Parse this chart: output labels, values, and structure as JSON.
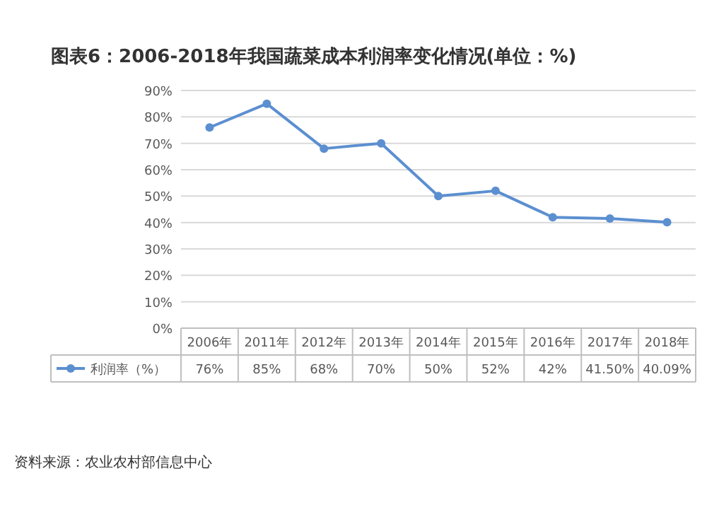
{
  "chart_data": {
    "type": "line",
    "title": "图表6：2006-2018年我国蔬菜成本利润率变化情况(单位：%)",
    "categories": [
      "2006年",
      "2011年",
      "2012年",
      "2013年",
      "2014年",
      "2015年",
      "2016年",
      "2017年",
      "2018年"
    ],
    "series": [
      {
        "name": "利润率（%）",
        "color": "#5b8fd0",
        "values": [
          76,
          85,
          68,
          70,
          50,
          52,
          42,
          41.5,
          40.09
        ],
        "value_labels": [
          "76%",
          "85%",
          "68%",
          "70%",
          "50%",
          "52%",
          "42%",
          "41.50%",
          "40.09%"
        ]
      }
    ],
    "ylim": [
      0,
      90
    ],
    "yticks": [
      {
        "value": 0,
        "label": "0%"
      },
      {
        "value": 10,
        "label": "10%"
      },
      {
        "value": 20,
        "label": "20%"
      },
      {
        "value": 30,
        "label": "30%"
      },
      {
        "value": 40,
        "label": "40%"
      },
      {
        "value": 50,
        "label": "50%"
      },
      {
        "value": 60,
        "label": "60%"
      },
      {
        "value": 70,
        "label": "70%"
      },
      {
        "value": 80,
        "label": "80%"
      },
      {
        "value": 90,
        "label": "90%"
      }
    ],
    "grid": "y",
    "marker": "circle",
    "legend": "bottom",
    "annotations": [
      "资料来源：农业农村部信息中心"
    ]
  }
}
